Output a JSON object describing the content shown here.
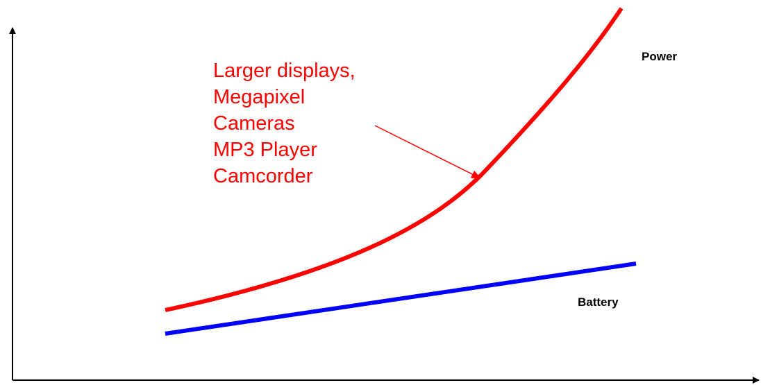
{
  "labels": {
    "power": "Power",
    "battery": "Battery"
  },
  "annotation": {
    "lines": [
      "Larger displays,",
      "Megapixel",
      "Cameras",
      "MP3 Player",
      "Camcorder"
    ]
  }
}
